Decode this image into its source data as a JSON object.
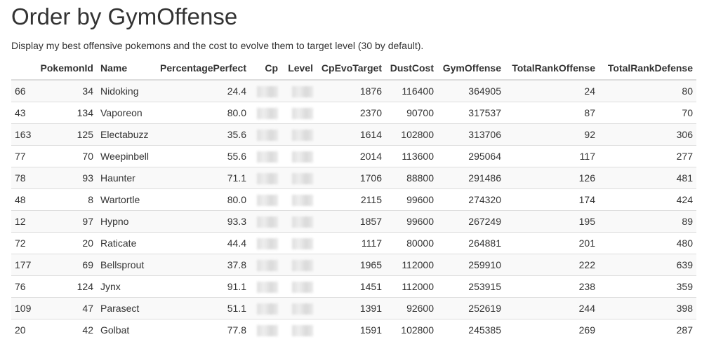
{
  "title": "Order by GymOffense",
  "description": "Display my best offensive pokemons and the cost to evolve them to target level (30 by default).",
  "columns": [
    "",
    "PokemonId",
    "Name",
    "PercentagePerfect",
    "Cp",
    "Level",
    "CpEvoTarget",
    "DustCost",
    "GymOffense",
    "TotalRankOffense",
    "TotalRankDefense"
  ],
  "rows": [
    {
      "index": "66",
      "pokemon_id": "34",
      "name": "Nidoking",
      "percentage_perfect": "24.4",
      "cp": "",
      "level": "",
      "cp_evo_target": "1876",
      "dust_cost": "116400",
      "gym_offense": "364905",
      "total_rank_offense": "24",
      "total_rank_defense": "80"
    },
    {
      "index": "43",
      "pokemon_id": "134",
      "name": "Vaporeon",
      "percentage_perfect": "80.0",
      "cp": "",
      "level": "",
      "cp_evo_target": "2370",
      "dust_cost": "90700",
      "gym_offense": "317537",
      "total_rank_offense": "87",
      "total_rank_defense": "70"
    },
    {
      "index": "163",
      "pokemon_id": "125",
      "name": "Electabuzz",
      "percentage_perfect": "35.6",
      "cp": "",
      "level": "",
      "cp_evo_target": "1614",
      "dust_cost": "102800",
      "gym_offense": "313706",
      "total_rank_offense": "92",
      "total_rank_defense": "306"
    },
    {
      "index": "77",
      "pokemon_id": "70",
      "name": "Weepinbell",
      "percentage_perfect": "55.6",
      "cp": "",
      "level": "",
      "cp_evo_target": "2014",
      "dust_cost": "113600",
      "gym_offense": "295064",
      "total_rank_offense": "117",
      "total_rank_defense": "277"
    },
    {
      "index": "78",
      "pokemon_id": "93",
      "name": "Haunter",
      "percentage_perfect": "71.1",
      "cp": "",
      "level": "",
      "cp_evo_target": "1706",
      "dust_cost": "88800",
      "gym_offense": "291486",
      "total_rank_offense": "126",
      "total_rank_defense": "481"
    },
    {
      "index": "48",
      "pokemon_id": "8",
      "name": "Wartortle",
      "percentage_perfect": "80.0",
      "cp": "",
      "level": "",
      "cp_evo_target": "2115",
      "dust_cost": "99600",
      "gym_offense": "274320",
      "total_rank_offense": "174",
      "total_rank_defense": "424"
    },
    {
      "index": "12",
      "pokemon_id": "97",
      "name": "Hypno",
      "percentage_perfect": "93.3",
      "cp": "",
      "level": "",
      "cp_evo_target": "1857",
      "dust_cost": "99600",
      "gym_offense": "267249",
      "total_rank_offense": "195",
      "total_rank_defense": "89"
    },
    {
      "index": "72",
      "pokemon_id": "20",
      "name": "Raticate",
      "percentage_perfect": "44.4",
      "cp": "",
      "level": "",
      "cp_evo_target": "1117",
      "dust_cost": "80000",
      "gym_offense": "264881",
      "total_rank_offense": "201",
      "total_rank_defense": "480"
    },
    {
      "index": "177",
      "pokemon_id": "69",
      "name": "Bellsprout",
      "percentage_perfect": "37.8",
      "cp": "",
      "level": "",
      "cp_evo_target": "1965",
      "dust_cost": "112000",
      "gym_offense": "259910",
      "total_rank_offense": "222",
      "total_rank_defense": "639"
    },
    {
      "index": "76",
      "pokemon_id": "124",
      "name": "Jynx",
      "percentage_perfect": "91.1",
      "cp": "",
      "level": "",
      "cp_evo_target": "1451",
      "dust_cost": "112000",
      "gym_offense": "253915",
      "total_rank_offense": "238",
      "total_rank_defense": "359"
    },
    {
      "index": "109",
      "pokemon_id": "47",
      "name": "Parasect",
      "percentage_perfect": "51.1",
      "cp": "",
      "level": "",
      "cp_evo_target": "1391",
      "dust_cost": "92600",
      "gym_offense": "252619",
      "total_rank_offense": "244",
      "total_rank_defense": "398"
    },
    {
      "index": "20",
      "pokemon_id": "42",
      "name": "Golbat",
      "percentage_perfect": "77.8",
      "cp": "",
      "level": "",
      "cp_evo_target": "1591",
      "dust_cost": "102800",
      "gym_offense": "245385",
      "total_rank_offense": "269",
      "total_rank_defense": "287"
    }
  ]
}
